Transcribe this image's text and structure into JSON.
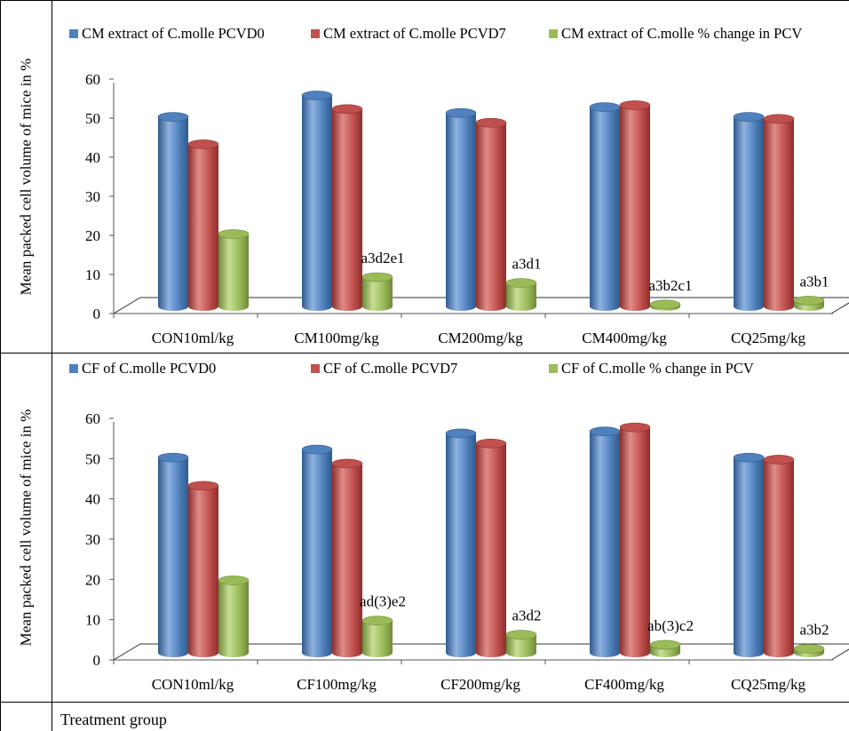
{
  "y_axis_label": "Mean packed cell volume  of mice in %",
  "x_axis_title": "Treatment group",
  "colors": {
    "blue": "#4F81BD",
    "red": "#C0504D",
    "green": "#9BBB59"
  },
  "chart_data": [
    {
      "type": "bar",
      "title": "",
      "xlabel": "",
      "ylabel": "Mean packed cell volume  of mice in %",
      "ylim": [
        0,
        60
      ],
      "yticks": [
        0,
        10,
        20,
        30,
        40,
        50,
        60
      ],
      "legend_position": "top",
      "categories": [
        "CON10ml/kg",
        "CM100mg/kg",
        "CM200mg/kg",
        "CM400mg/kg",
        "CQ25mg/kg"
      ],
      "series": [
        {
          "name": "CM extract of C.molle PCVD0",
          "values": [
            48.5,
            54,
            49.5,
            51,
            48.5
          ]
        },
        {
          "name": "CM extract of C.molle PCVD7",
          "values": [
            41.5,
            50.5,
            47,
            51.5,
            48
          ]
        },
        {
          "name": "CM extract of C.molle  % change in PCV",
          "values": [
            18.5,
            7.5,
            6,
            0.5,
            1.5
          ]
        }
      ],
      "annotations": [
        "",
        "a3d2e1",
        "a3d1",
        "a3b2c1",
        "a3b1"
      ]
    },
    {
      "type": "bar",
      "title": "",
      "xlabel": "",
      "ylabel": "Mean packed cell volume  of mice in %",
      "ylim": [
        0,
        60
      ],
      "yticks": [
        0,
        10,
        20,
        30,
        40,
        50,
        60
      ],
      "legend_position": "top",
      "categories": [
        "CON10ml/kg",
        "CF100mg/kg",
        "CF200mg/kg",
        "CF400mg/kg",
        "CQ25mg/kg"
      ],
      "series": [
        {
          "name": "CF  of C.molle PCVD0",
          "values": [
            48.5,
            50.5,
            54.5,
            55,
            48.5
          ]
        },
        {
          "name": "CF  of C.molle PCVD7",
          "values": [
            41.5,
            47,
            52,
            56,
            48
          ]
        },
        {
          "name": "CF of C.molle  % change in PCV",
          "values": [
            18,
            8,
            4.5,
            2,
            1
          ]
        }
      ],
      "annotations": [
        "",
        "ad(3)e2",
        "a3d2",
        "ab(3)c2",
        "a3b2"
      ]
    }
  ]
}
